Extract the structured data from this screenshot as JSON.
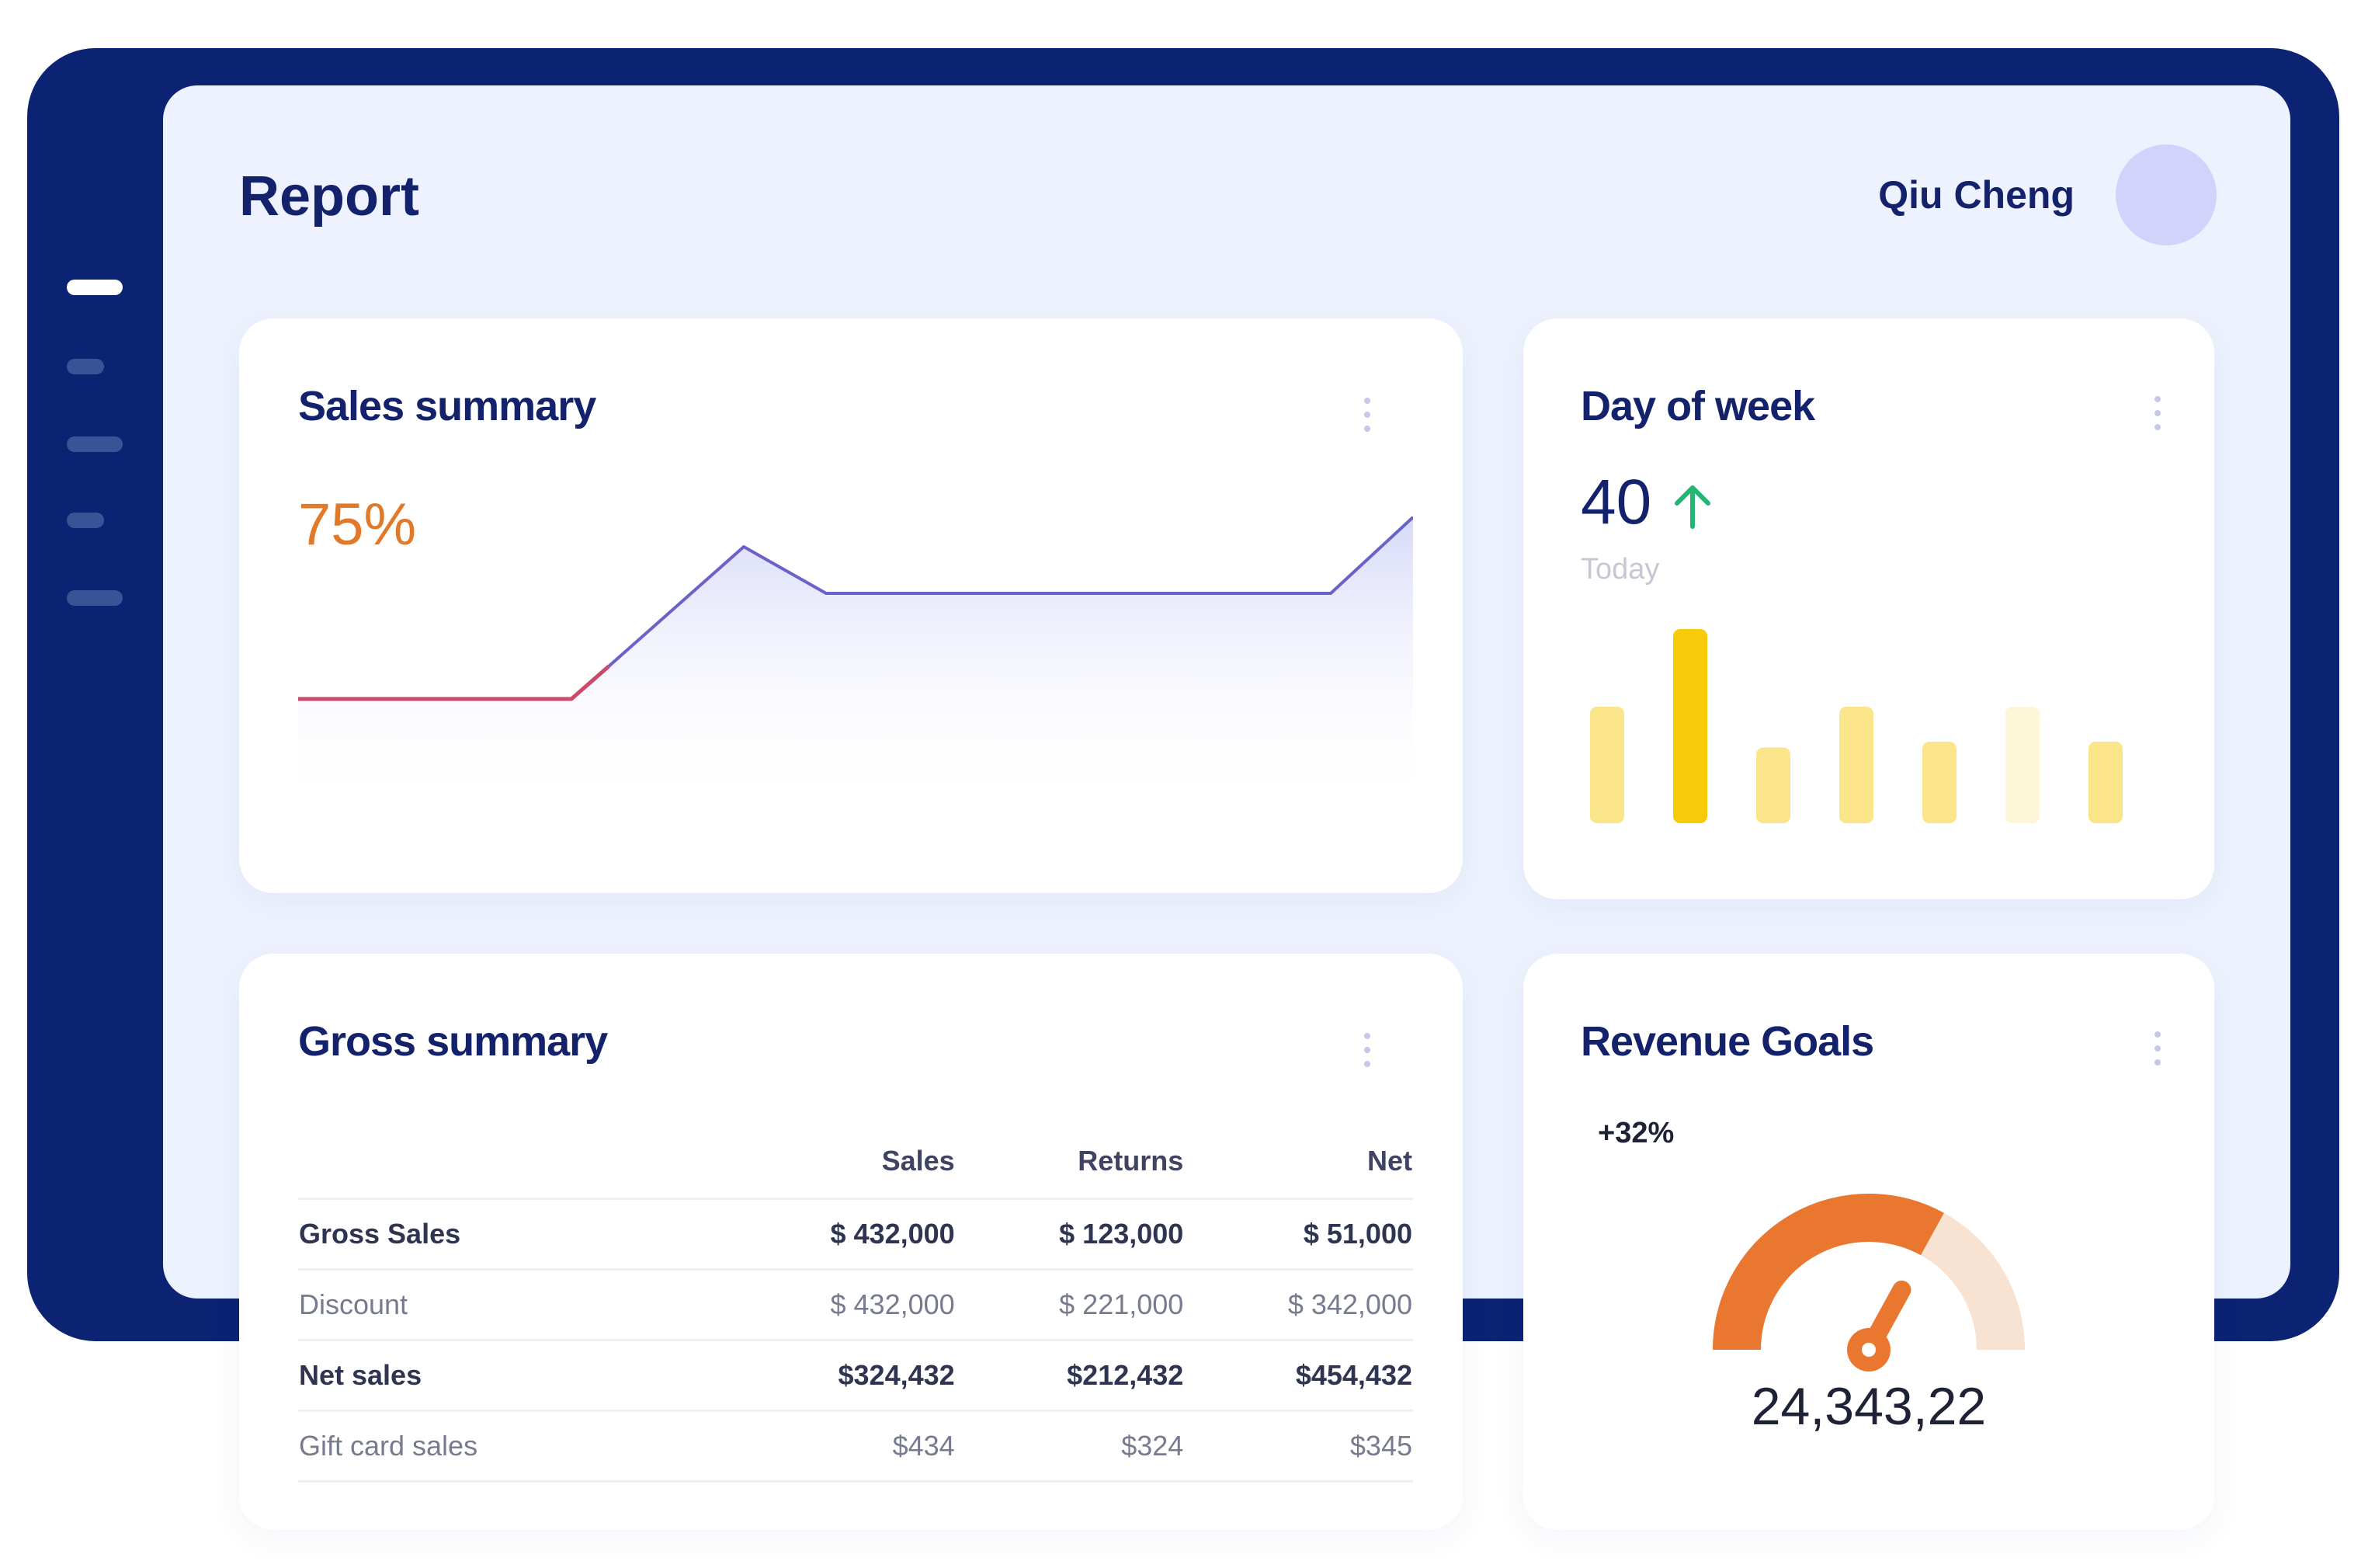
{
  "header": {
    "title": "Report",
    "user_name": "Qiu Cheng"
  },
  "sidebar": {
    "items": [
      "nav-item-1",
      "nav-item-2",
      "nav-item-3",
      "nav-item-4",
      "nav-item-5"
    ],
    "active_index": 0
  },
  "sales_summary": {
    "title": "Sales summary",
    "percent": "75%",
    "line_color_start": "#c94a6a",
    "line_color": "#6a62c9",
    "fill_color": "#c9cdf6"
  },
  "day_of_week": {
    "title": "Day of week",
    "value": "40",
    "label": "Today",
    "trend": "up",
    "trend_color": "#22b573",
    "bars": [
      {
        "value": 0.6,
        "color": "#fbe58a"
      },
      {
        "value": 1.0,
        "color": "#f7ca0a"
      },
      {
        "value": 0.39,
        "color": "#fbe58a"
      },
      {
        "value": 0.6,
        "color": "#fbe58a"
      },
      {
        "value": 0.42,
        "color": "#fbe58a"
      },
      {
        "value": 0.6,
        "color": "#fdf6d8"
      },
      {
        "value": 0.42,
        "color": "#fbe58a"
      }
    ]
  },
  "gross_summary": {
    "title": "Gross summary",
    "columns": [
      "",
      "Sales",
      "Returns",
      "Net"
    ],
    "rows": [
      {
        "cells": [
          "Gross Sales",
          "$ 432,000",
          "$ 123,000",
          "$ 51,000"
        ],
        "style": "bold"
      },
      {
        "cells": [
          "Discount",
          "$ 432,000",
          "$ 221,000",
          "$ 342,000"
        ],
        "style": "light"
      },
      {
        "cells": [
          "Net sales",
          "$324,432",
          "$212,432",
          "$454,432"
        ],
        "style": "bold"
      },
      {
        "cells": [
          "Gift card sales",
          "$434",
          "$324",
          "$345"
        ],
        "style": "light"
      }
    ]
  },
  "revenue_goals": {
    "title": "Revenue Goals",
    "delta": "+32%",
    "amount": "24,343,22",
    "progress": 0.66,
    "accent_color": "#e9772f",
    "track_color": "#f8e2d2"
  },
  "icons": {
    "kebab": "kebab-menu-icon",
    "trend": "arrow-up-icon",
    "gauge": "gauge-needle-icon"
  }
}
